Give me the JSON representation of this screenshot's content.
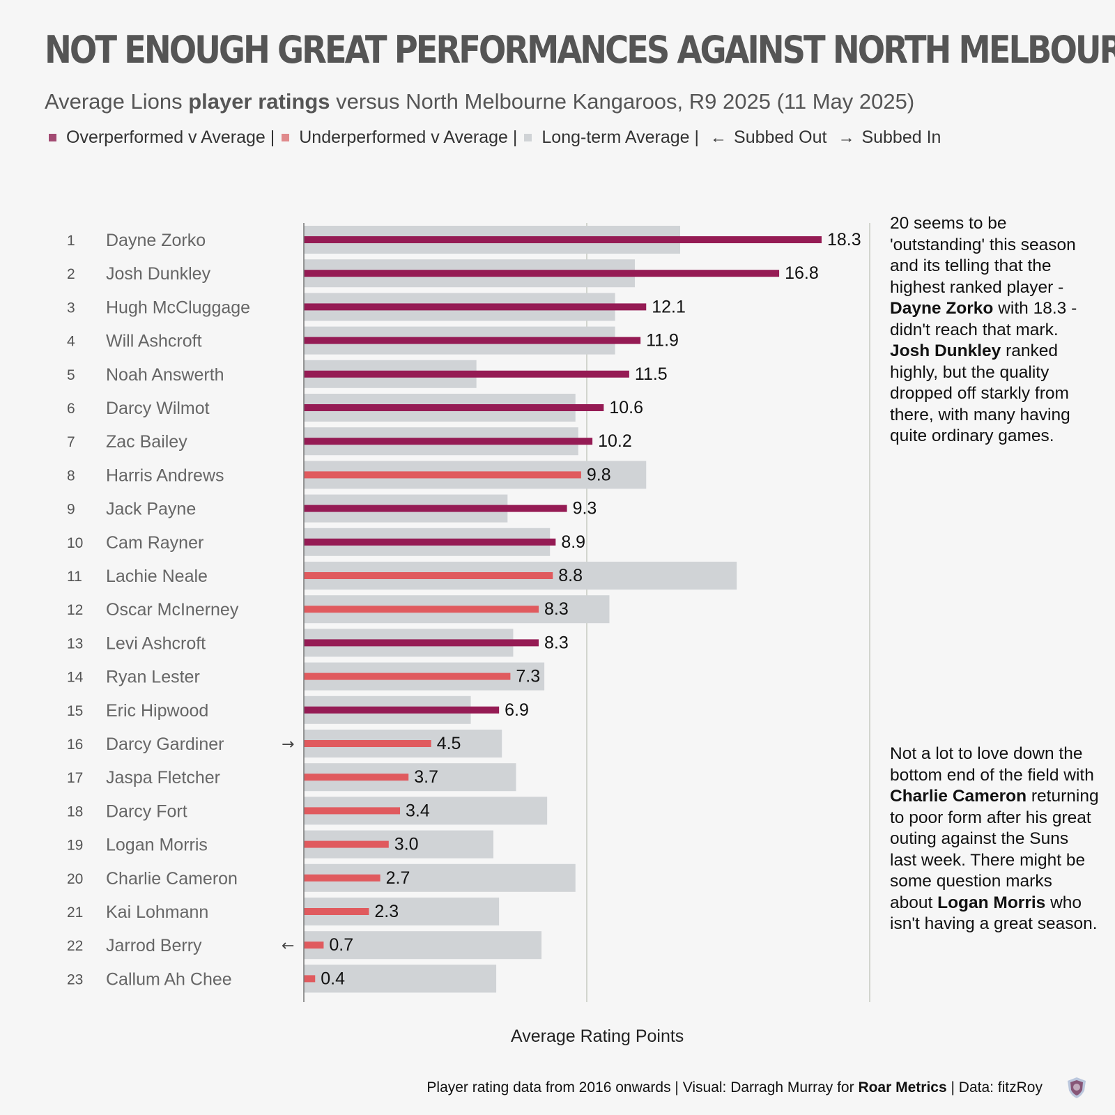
{
  "header": {
    "title": "NOT ENOUGH GREAT PERFORMANCES AGAINST NORTH MELBOURNE",
    "subtitle_pre": "Average Lions ",
    "subtitle_bold": "player ratings",
    "subtitle_post": " versus North Melbourne Kangaroos, R9 2025 (11 May 2025)"
  },
  "legend": {
    "over": "Overperformed v Average |",
    "under": "Underperformed v Average |",
    "avg": "Long-term Average |",
    "subbed_out": "Subbed Out",
    "subbed_in": "Subbed In",
    "arrow_left": "←",
    "arrow_right": "→"
  },
  "colors": {
    "over": "#951b54",
    "under": "#e05a5e",
    "average": "#d0d3d6",
    "gridline": "#c5cac0"
  },
  "notes": {
    "top": {
      "p1": "20 seems to be 'outstanding' this season and its telling that the highest ranked player - ",
      "b1": "Dayne Zorko",
      "p2": " with 18.3 - didn't reach that mark. ",
      "b2": "Josh Dunkley",
      "p3": " ranked highly, but the quality dropped off starkly from there, with many having quite ordinary games."
    },
    "bottom": {
      "p1": "Not a lot to love down the bottom end of the field with ",
      "b1": "Charlie Cameron",
      "p2": " returning to poor form after his great outing against the Suns last week. There might be some question marks about ",
      "b2": "Logan Morris",
      "p3": " who isn't having a great season."
    }
  },
  "footer": {
    "pre": "Player rating data from 2016 onwards | Visual: Darragh Murray for ",
    "bold": "Roar Metrics",
    "post": " | Data: fitzRoy"
  },
  "chart_data": {
    "type": "bar",
    "orientation": "horizontal",
    "xlabel": "Average Rating Points",
    "xlim": [
      0,
      20
    ],
    "gridlines": [
      0,
      10,
      20
    ],
    "legend_position": "top",
    "rows": [
      {
        "rank": "1",
        "player": "Dayne Zorko",
        "value": 18.3,
        "label": "18.3",
        "average": 13.3,
        "status": "over",
        "sub": ""
      },
      {
        "rank": "2",
        "player": "Josh Dunkley",
        "value": 16.8,
        "label": "16.8",
        "average": 11.7,
        "status": "over",
        "sub": ""
      },
      {
        "rank": "3",
        "player": "Hugh McCluggage",
        "value": 12.1,
        "label": "12.1",
        "average": 11.0,
        "status": "over",
        "sub": ""
      },
      {
        "rank": "4",
        "player": "Will Ashcroft",
        "value": 11.9,
        "label": "11.9",
        "average": 11.0,
        "status": "over",
        "sub": ""
      },
      {
        "rank": "5",
        "player": "Noah Answerth",
        "value": 11.5,
        "label": "11.5",
        "average": 6.1,
        "status": "over",
        "sub": ""
      },
      {
        "rank": "6",
        "player": "Darcy Wilmot",
        "value": 10.6,
        "label": "10.6",
        "average": 9.6,
        "status": "over",
        "sub": ""
      },
      {
        "rank": "7",
        "player": "Zac Bailey",
        "value": 10.2,
        "label": "10.2",
        "average": 9.7,
        "status": "over",
        "sub": ""
      },
      {
        "rank": "8",
        "player": "Harris Andrews",
        "value": 9.8,
        "label": "9.8",
        "average": 12.1,
        "status": "under",
        "sub": ""
      },
      {
        "rank": "9",
        "player": "Jack Payne",
        "value": 9.3,
        "label": "9.3",
        "average": 7.2,
        "status": "over",
        "sub": ""
      },
      {
        "rank": "10",
        "player": "Cam Rayner",
        "value": 8.9,
        "label": "8.9",
        "average": 8.7,
        "status": "over",
        "sub": ""
      },
      {
        "rank": "11",
        "player": "Lachie Neale",
        "value": 8.8,
        "label": "8.8",
        "average": 15.3,
        "status": "under",
        "sub": ""
      },
      {
        "rank": "12",
        "player": "Oscar McInerney",
        "value": 8.3,
        "label": "8.3",
        "average": 10.8,
        "status": "under",
        "sub": ""
      },
      {
        "rank": "13",
        "player": "Levi Ashcroft",
        "value": 8.3,
        "label": "8.3",
        "average": 7.4,
        "status": "over",
        "sub": ""
      },
      {
        "rank": "14",
        "player": "Ryan Lester",
        "value": 7.3,
        "label": "7.3",
        "average": 8.5,
        "status": "under",
        "sub": ""
      },
      {
        "rank": "15",
        "player": "Eric Hipwood",
        "value": 6.9,
        "label": "6.9",
        "average": 5.9,
        "status": "over",
        "sub": ""
      },
      {
        "rank": "16",
        "player": "Darcy Gardiner",
        "value": 4.5,
        "label": "4.5",
        "average": 7.0,
        "status": "under",
        "sub": "in"
      },
      {
        "rank": "17",
        "player": "Jaspa Fletcher",
        "value": 3.7,
        "label": "3.7",
        "average": 7.5,
        "status": "under",
        "sub": ""
      },
      {
        "rank": "18",
        "player": "Darcy Fort",
        "value": 3.4,
        "label": "3.4",
        "average": 8.6,
        "status": "under",
        "sub": ""
      },
      {
        "rank": "19",
        "player": "Logan Morris",
        "value": 3.0,
        "label": "3.0",
        "average": 6.7,
        "status": "under",
        "sub": ""
      },
      {
        "rank": "20",
        "player": "Charlie Cameron",
        "value": 2.7,
        "label": "2.7",
        "average": 9.6,
        "status": "under",
        "sub": ""
      },
      {
        "rank": "21",
        "player": "Kai Lohmann",
        "value": 2.3,
        "label": "2.3",
        "average": 6.9,
        "status": "under",
        "sub": ""
      },
      {
        "rank": "22",
        "player": "Jarrod Berry",
        "value": 0.7,
        "label": "0.7",
        "average": 8.4,
        "status": "under",
        "sub": "out"
      },
      {
        "rank": "23",
        "player": "Callum Ah Chee",
        "value": 0.4,
        "label": "0.4",
        "average": 6.8,
        "status": "under",
        "sub": ""
      }
    ]
  }
}
